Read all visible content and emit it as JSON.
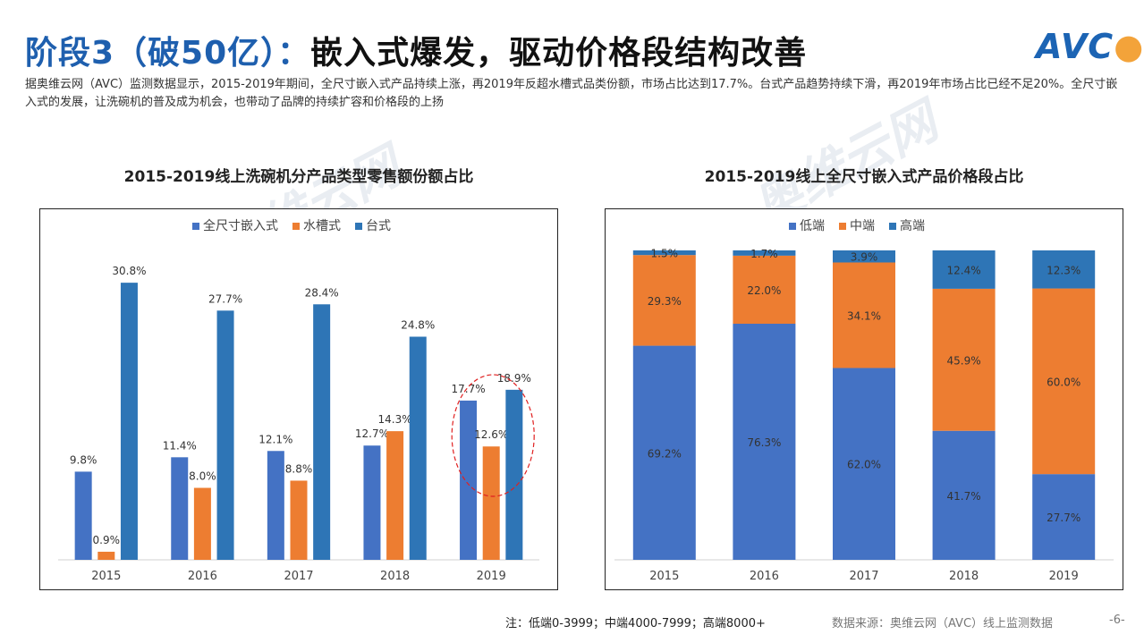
{
  "title": {
    "prefix": "阶段3（破50亿）：",
    "main": "嵌入式爆发，驱动价格段结构改善"
  },
  "logo": {
    "text": "AVC",
    "dot": ""
  },
  "description": "据奥维云网（AVC）监测数据显示，2015-2019年期间，全尺寸嵌入式产品持续上涨，再2019年反超水槽式品类份额，市场占比达到17.7%。台式产品趋势持续下滑，再2019年市场占比已经不足20%。全尺寸嵌入式的发展，让洗碗机的普及成为机会，也带动了品牌的持续扩容和价格段的上扬",
  "watermark": {
    "cn": "奥维云网",
    "en": "ALL VIEW CLOUD"
  },
  "chart_data": [
    {
      "type": "bar",
      "title": "2015-2019线上洗碗机分产品类型零售额份额占比",
      "categories": [
        "2015",
        "2016",
        "2017",
        "2018",
        "2019"
      ],
      "series": [
        {
          "name": "全尺寸嵌入式",
          "color": "#4472c4",
          "values": [
            9.8,
            11.4,
            12.1,
            12.7,
            17.7
          ],
          "labels": [
            "9.8%",
            "11.4%",
            "12.1%",
            "12.7%",
            "17.7%"
          ]
        },
        {
          "name": "水槽式",
          "color": "#ed7d31",
          "values": [
            0.9,
            8.0,
            8.8,
            14.3,
            12.6
          ],
          "labels": [
            "0.9%",
            "8.0%",
            "8.8%",
            "14.3%",
            "12.6%"
          ]
        },
        {
          "name": "台式",
          "color": "#2e75b6",
          "values": [
            30.8,
            27.7,
            28.4,
            24.8,
            18.9
          ],
          "labels": [
            "30.8%",
            "27.7%",
            "28.4%",
            "24.8%",
            "18.9%"
          ]
        }
      ],
      "legend": "top",
      "grid": false,
      "highlight": "2019"
    },
    {
      "type": "bar",
      "stacked": true,
      "title": "2015-2019线上全尺寸嵌入式产品价格段占比",
      "categories": [
        "2015",
        "2016",
        "2017",
        "2018",
        "2019"
      ],
      "series": [
        {
          "name": "低端",
          "color": "#4472c4",
          "values": [
            69.2,
            76.3,
            62.0,
            41.7,
            27.7
          ],
          "labels": [
            "69.2%",
            "76.3%",
            "62.0%",
            "41.7%",
            "27.7%"
          ]
        },
        {
          "name": "中端",
          "color": "#ed7d31",
          "values": [
            29.3,
            22.0,
            34.1,
            45.9,
            60.0
          ],
          "labels": [
            "29.3%",
            "22.0%",
            "34.1%",
            "45.9%",
            "60.0%"
          ]
        },
        {
          "name": "高端",
          "color": "#2e75b6",
          "values": [
            1.5,
            1.7,
            3.9,
            12.4,
            12.3
          ],
          "labels": [
            "1.5%",
            "1.7%",
            "3.9%",
            "12.4%",
            "12.3%"
          ]
        }
      ],
      "legend": "top",
      "grid": false
    }
  ],
  "footer": {
    "note": "注：低端0-3999；中端4000-7999；高端8000+",
    "source": "数据来源：奥维云网（AVC）线上监测数据",
    "page": "-6-"
  }
}
